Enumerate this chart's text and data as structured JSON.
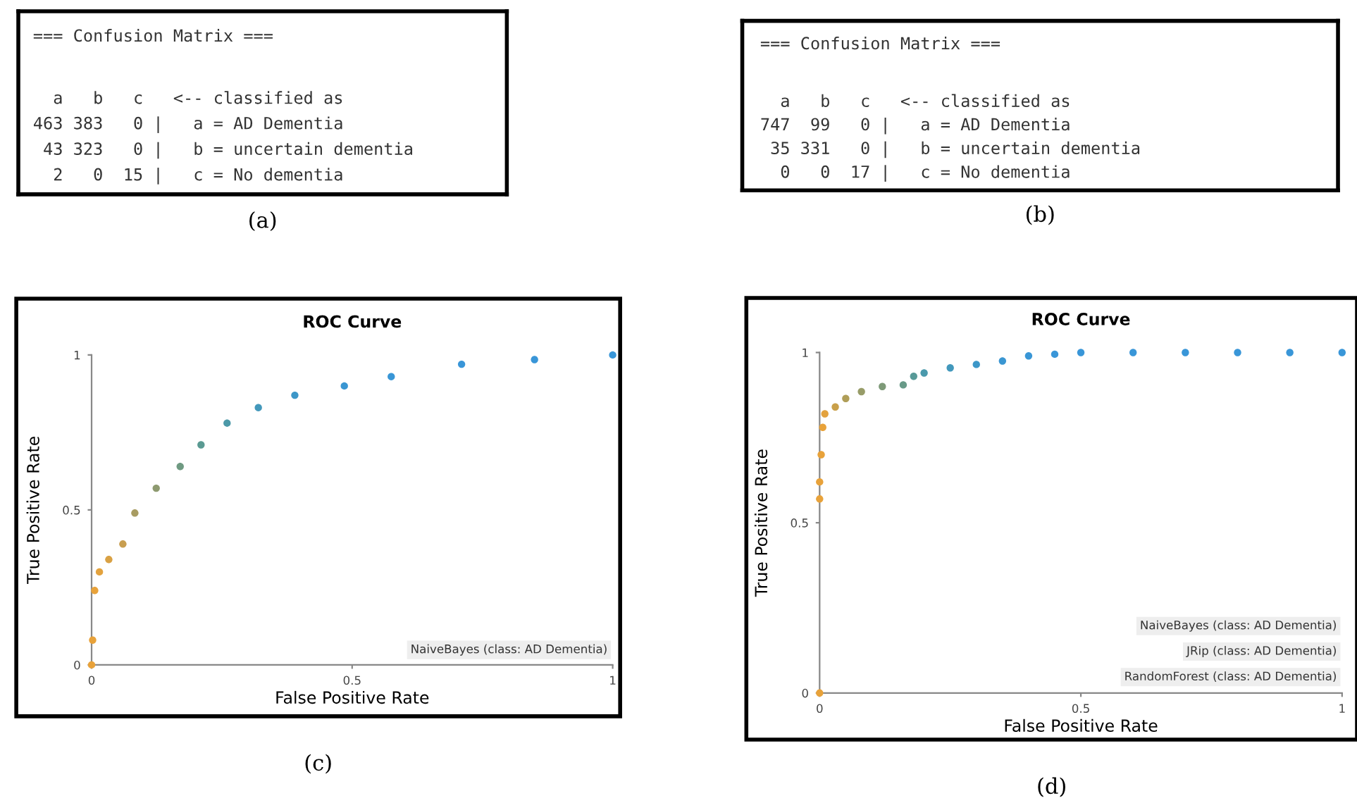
{
  "chart_data": [
    {
      "type": "other",
      "title": "=== Confusion Matrix ===",
      "annotations": [
        "  a   b   c   <-- classified as",
        "463 383   0 |   a = AD Dementia",
        " 43 323   0 |   b = uncertain dementia",
        "  2   0  15 |   c = No dementia",
        "(a)"
      ]
    },
    {
      "type": "other",
      "title": "=== Confusion Matrix ===",
      "annotations": [
        "  a   b   c   <-- classified as",
        "747  99   0 |   a = AD Dementia",
        " 35 331   0 |   b = uncertain dementia",
        "  0   0  17 |   c = No dementia",
        "(b)"
      ]
    },
    {
      "type": "scatter",
      "title": "ROC Curve",
      "xlabel": "False Positive Rate",
      "ylabel": "True Positive Rate",
      "xlim": [
        0,
        1
      ],
      "ylim": [
        0,
        1
      ],
      "xticks": [
        0,
        0.5,
        1
      ],
      "yticks": [
        0,
        0.5,
        1
      ],
      "marker": "circle",
      "grid": false,
      "series": [
        {
          "x": [
            0,
            0.002,
            0.006,
            0.015,
            0.033,
            0.06,
            0.083,
            0.124,
            0.17,
            0.21,
            0.26,
            0.32,
            0.39,
            0.485,
            0.575,
            0.71,
            0.85,
            1
          ],
          "values": [
            0,
            0.08,
            0.24,
            0.3,
            0.34,
            0.39,
            0.49,
            0.57,
            0.64,
            0.71,
            0.78,
            0.83,
            0.87,
            0.9,
            0.93,
            0.97,
            0.985,
            1
          ],
          "colors": [
            "#e8a23a",
            "#e8a23a",
            "#e8a23a",
            "#e3a23e",
            "#d9a144",
            "#c89e50",
            "#a89c62",
            "#8e9a70",
            "#6f9a82",
            "#5a9a92",
            "#4c99a8",
            "#4398bb",
            "#3d97c8",
            "#3a96d2",
            "#3996d6",
            "#3996d8",
            "#3996d8",
            "#3996d8"
          ]
        }
      ],
      "annotations": [
        "NaiveBayes (class: AD Dementia)",
        "(c)"
      ]
    },
    {
      "type": "scatter",
      "title": "ROC Curve",
      "xlabel": "False Positive Rate",
      "ylabel": "True Positive Rate",
      "xlim": [
        0,
        1
      ],
      "ylim": [
        0,
        1
      ],
      "xticks": [
        0,
        0.5,
        1
      ],
      "yticks": [
        0,
        0.5,
        1
      ],
      "marker": "circle",
      "grid": false,
      "series": [
        {
          "x": [
            0,
            0,
            0,
            0.003,
            0.006,
            0.01,
            0.03,
            0.05,
            0.08,
            0.12,
            0.16,
            0.18,
            0.2,
            0.25,
            0.3,
            0.35,
            0.4,
            0.45,
            0.5,
            0.6,
            0.7,
            0.8,
            0.9,
            1
          ],
          "values": [
            0,
            0.57,
            0.62,
            0.7,
            0.78,
            0.82,
            0.84,
            0.865,
            0.885,
            0.9,
            0.905,
            0.93,
            0.94,
            0.955,
            0.965,
            0.975,
            0.99,
            0.995,
            1,
            1,
            1,
            1,
            1,
            1
          ],
          "colors": [
            "#e8a23a",
            "#e8a23a",
            "#e8a23a",
            "#e8a23a",
            "#e8a23a",
            "#e3a23e",
            "#c9a04a",
            "#b09e58",
            "#979c68",
            "#7e9a78",
            "#689a88",
            "#589a98",
            "#4a99ac",
            "#4298bc",
            "#3d97c8",
            "#3a96d2",
            "#3996d6",
            "#3996d8",
            "#3996d8",
            "#3996d8",
            "#3996d8",
            "#3996d8",
            "#3996d8",
            "#3996d8"
          ]
        }
      ],
      "annotations": [
        "NaiveBayes (class: AD Dementia)",
        "JRip (class: AD Dementia)",
        "RandomForest (class: AD Dementia)",
        "(d)"
      ]
    }
  ]
}
